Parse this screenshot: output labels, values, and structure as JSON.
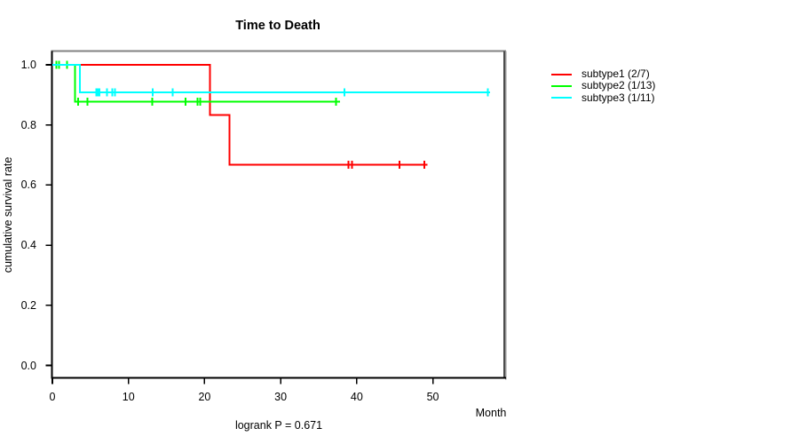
{
  "title": "Time to Death",
  "axes": {
    "ylabel": "cumulative survival rate",
    "xlabel": "Month",
    "x_tick_labels": [
      "0",
      "10",
      "20",
      "30",
      "40",
      "50"
    ],
    "y_tick_labels": [
      "1.0",
      "0.8",
      "0.6",
      "0.4",
      "0.2",
      "0.0"
    ]
  },
  "annotation": {
    "logrank": "logrank P = 0.671"
  },
  "legend": {
    "entries": [
      {
        "label": "subtype1 (2/7)",
        "color": "#ff0000"
      },
      {
        "label": "subtype2 (1/13)",
        "color": "#00ff00"
      },
      {
        "label": "subtype3 (1/11)",
        "color": "#00ffff"
      }
    ]
  },
  "chart_data": {
    "type": "line",
    "subtype": "kaplan-meier-step",
    "title": "Time to Death",
    "xlabel": "Month",
    "ylabel": "cumulative survival rate",
    "xlim": [
      0,
      59.4
    ],
    "ylim": [
      0,
      1.04
    ],
    "x_ticks": [
      0,
      10,
      20,
      30,
      40,
      50
    ],
    "y_ticks": [
      1.0,
      0.8,
      0.6,
      0.4,
      0.2,
      0.0
    ],
    "grid": false,
    "legend_position": "right-outside",
    "logrank_p": 0.671,
    "series": [
      {
        "name": "subtype1 (2/7)",
        "color": "#ff0000",
        "steps": [
          [
            0,
            1.0
          ],
          [
            20.7,
            1.0
          ],
          [
            20.7,
            0.833
          ],
          [
            23.3,
            0.833
          ],
          [
            23.3,
            0.667
          ],
          [
            49.3,
            0.667
          ]
        ],
        "censor_marks": [
          [
            38.9,
            0.667
          ],
          [
            39.4,
            0.667
          ],
          [
            45.6,
            0.667
          ],
          [
            48.9,
            0.667
          ]
        ]
      },
      {
        "name": "subtype2 (1/13)",
        "color": "#00ff00",
        "steps": [
          [
            0,
            1.0
          ],
          [
            3.0,
            1.0
          ],
          [
            3.0,
            0.878
          ],
          [
            37.8,
            0.878
          ]
        ],
        "censor_marks": [
          [
            0.5,
            1.0
          ],
          [
            0.9,
            1.0
          ],
          [
            1.9,
            1.0
          ],
          [
            3.4,
            0.878
          ],
          [
            4.6,
            0.878
          ],
          [
            13.1,
            0.878
          ],
          [
            17.5,
            0.878
          ],
          [
            19.1,
            0.878
          ],
          [
            19.4,
            0.878
          ],
          [
            37.3,
            0.878
          ]
        ]
      },
      {
        "name": "subtype3 (1/11)",
        "color": "#00ffff",
        "steps": [
          [
            0,
            1.0
          ],
          [
            3.6,
            1.0
          ],
          [
            3.6,
            0.909
          ],
          [
            57.5,
            0.909
          ]
        ],
        "censor_marks": [
          [
            5.8,
            0.909
          ],
          [
            6.0,
            0.909
          ],
          [
            6.2,
            0.909
          ],
          [
            7.2,
            0.909
          ],
          [
            7.9,
            0.909
          ],
          [
            8.2,
            0.909
          ],
          [
            13.2,
            0.909
          ],
          [
            15.8,
            0.909
          ],
          [
            38.4,
            0.909
          ],
          [
            57.2,
            0.909
          ]
        ]
      }
    ]
  }
}
